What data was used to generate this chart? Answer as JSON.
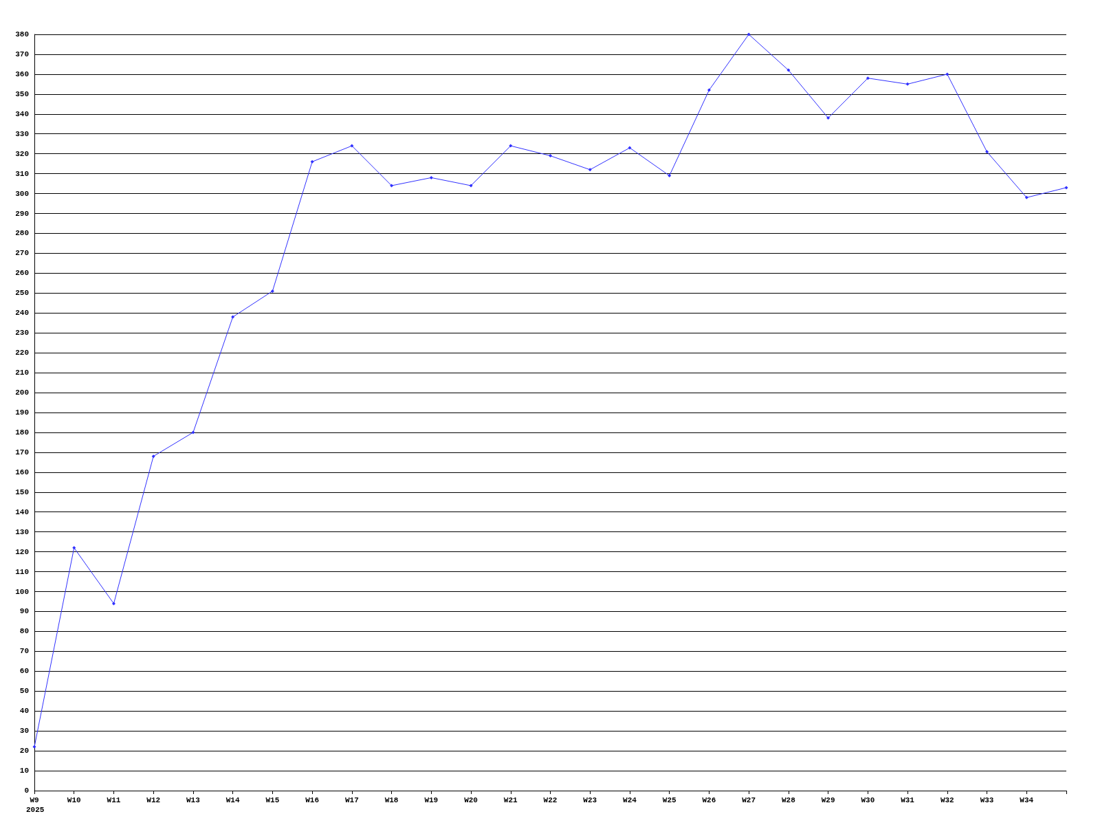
{
  "chart_data": {
    "type": "line",
    "categories": [
      "W9",
      "W10",
      "W11",
      "W12",
      "W13",
      "W14",
      "W15",
      "W16",
      "W17",
      "W18",
      "W19",
      "W20",
      "W21",
      "W22",
      "W23",
      "W24",
      "W25",
      "W26",
      "W27",
      "W28",
      "W29",
      "W30",
      "W31",
      "W32",
      "W33",
      "W34",
      null
    ],
    "series": [
      {
        "color": "#3030ff",
        "values": [
          22,
          122,
          94,
          168,
          180,
          238,
          251,
          316,
          324,
          304,
          308,
          304,
          324,
          319,
          312,
          323,
          309,
          352,
          380,
          362,
          338,
          358,
          355,
          360,
          321,
          298,
          303
        ]
      }
    ],
    "ylim": [
      0,
      380
    ],
    "yticks": [
      0,
      10,
      20,
      30,
      40,
      50,
      60,
      70,
      80,
      90,
      100,
      110,
      120,
      130,
      140,
      150,
      160,
      170,
      180,
      190,
      200,
      210,
      220,
      230,
      240,
      250,
      260,
      270,
      280,
      290,
      300,
      310,
      320,
      330,
      340,
      350,
      360,
      370,
      380
    ],
    "grid": "y",
    "marker": "diamond",
    "line_style": "solid",
    "annotations": [
      "2025"
    ]
  }
}
